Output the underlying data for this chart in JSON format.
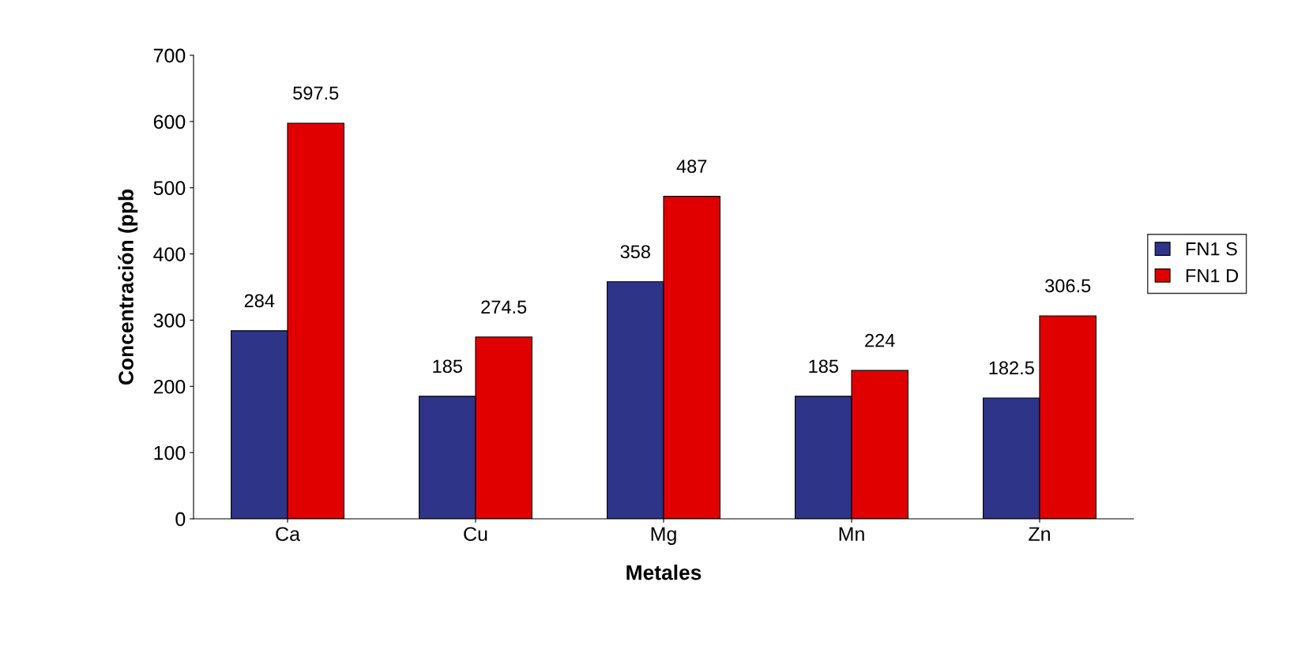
{
  "chart_data": {
    "type": "bar",
    "xlabel": "Metales",
    "ylabel": "Concentración (ppb",
    "categories": [
      "Ca",
      "Cu",
      "Mg",
      "Mn",
      "Zn"
    ],
    "series": [
      {
        "name": "FN1 S",
        "color": "#2e3488",
        "values": [
          284,
          185,
          358,
          185,
          182.5
        ]
      },
      {
        "name": "FN1 D",
        "color": "#e00000",
        "values": [
          597.5,
          274.5,
          487,
          224,
          306.5
        ]
      }
    ],
    "ylim": [
      0,
      700
    ],
    "yticks": [
      0,
      100,
      200,
      300,
      400,
      500,
      600,
      700
    ],
    "data_labels": true,
    "grid": false,
    "legend": "right"
  }
}
